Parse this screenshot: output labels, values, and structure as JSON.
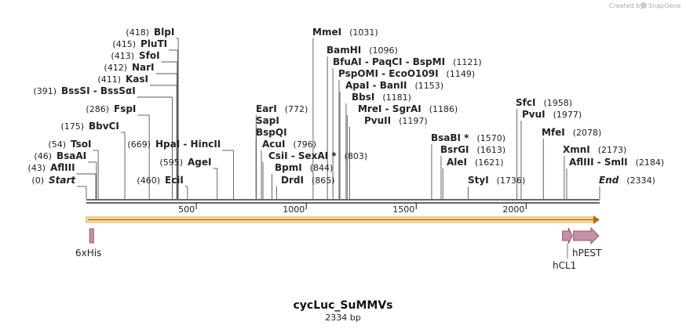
{
  "credit": {
    "text": "Created by",
    "brand": "SnapGene"
  },
  "title": "cycLuc_SuMMVs",
  "subtitle": "2334 bp",
  "length": 2334,
  "colors": {
    "backbone": "#333333",
    "orf_fill": "#ffd27a",
    "orf_edge": "#d08a2a",
    "feature_fill": "#c98fa8",
    "feature_edge": "#8a5a70",
    "leader": "#555555"
  },
  "ticks": [
    {
      "pos": 500,
      "label": "500"
    },
    {
      "pos": 1000,
      "label": "1000"
    },
    {
      "pos": 1500,
      "label": "1500"
    },
    {
      "pos": 2000,
      "label": "2000"
    }
  ],
  "sites": [
    {
      "name": "Start",
      "pos": 0,
      "pos_label": "(0)",
      "italic": true
    },
    {
      "name": "AflIII",
      "pos": 43,
      "pos_label": "(43)"
    },
    {
      "name": "BsaAI",
      "pos": 46,
      "pos_label": "(46)"
    },
    {
      "name": "TsoI",
      "pos": 54,
      "pos_label": "(54)"
    },
    {
      "name": "BbvCI",
      "pos": 175,
      "pos_label": "(175)"
    },
    {
      "name": "FspI",
      "pos": 286,
      "pos_label": "(286)"
    },
    {
      "name": "BssSI  -  BssSαI",
      "pos": 391,
      "pos_label": "(391)"
    },
    {
      "name": "KasI",
      "pos": 411,
      "pos_label": "(411)"
    },
    {
      "name": "NarI",
      "pos": 412,
      "pos_label": "(412)"
    },
    {
      "name": "SfoI",
      "pos": 413,
      "pos_label": "(413)"
    },
    {
      "name": "PluTI",
      "pos": 415,
      "pos_label": "(415)"
    },
    {
      "name": "BlpI",
      "pos": 418,
      "pos_label": "(418)"
    },
    {
      "name": "EciI",
      "pos": 460,
      "pos_label": "(460)"
    },
    {
      "name": "AgeI",
      "pos": 595,
      "pos_label": "(595)"
    },
    {
      "name": "HpaI  -  HincII",
      "pos": 669,
      "pos_label": "(669)"
    },
    {
      "name": "EarI",
      "pos": 772,
      "pos_label": "(772)"
    },
    {
      "name": "SapI",
      "pos": 772,
      "pos_label": ""
    },
    {
      "name": "BspQI",
      "pos": 772,
      "pos_label": ""
    },
    {
      "name": "AcuI",
      "pos": 796,
      "pos_label": "(796)"
    },
    {
      "name": "CsiI  -  SexAI *",
      "pos": 803,
      "pos_label": "(803)"
    },
    {
      "name": "BpmI",
      "pos": 844,
      "pos_label": "(844)"
    },
    {
      "name": "DrdI",
      "pos": 865,
      "pos_label": "(865)"
    },
    {
      "name": "MmeI",
      "pos": 1031,
      "pos_label": "(1031)"
    },
    {
      "name": "BamHI",
      "pos": 1096,
      "pos_label": "(1096)"
    },
    {
      "name": "BfuAI  -  PaqCI  -  BspMI",
      "pos": 1121,
      "pos_label": "(1121)"
    },
    {
      "name": "PspOMI  -  EcoO109I",
      "pos": 1149,
      "pos_label": "(1149)"
    },
    {
      "name": "ApaI  -  BanII",
      "pos": 1153,
      "pos_label": "(1153)"
    },
    {
      "name": "BbsI",
      "pos": 1181,
      "pos_label": "(1181)"
    },
    {
      "name": "MreI  -  SgrAI",
      "pos": 1186,
      "pos_label": "(1186)"
    },
    {
      "name": "PvuII",
      "pos": 1197,
      "pos_label": "(1197)"
    },
    {
      "name": "BsaBI *",
      "pos": 1570,
      "pos_label": "(1570)"
    },
    {
      "name": "BsrGI",
      "pos": 1613,
      "pos_label": "(1613)"
    },
    {
      "name": "AleI",
      "pos": 1621,
      "pos_label": "(1621)"
    },
    {
      "name": "StyI",
      "pos": 1736,
      "pos_label": "(1736)"
    },
    {
      "name": "SfcI",
      "pos": 1958,
      "pos_label": "(1958)"
    },
    {
      "name": "PvuI",
      "pos": 1977,
      "pos_label": "(1977)"
    },
    {
      "name": "MfeI",
      "pos": 2078,
      "pos_label": "(2078)"
    },
    {
      "name": "XmnI",
      "pos": 2173,
      "pos_label": "(2173)"
    },
    {
      "name": "AflIII  -  SmlI",
      "pos": 2184,
      "pos_label": "(2184)"
    },
    {
      "name": "End",
      "pos": 2334,
      "pos_label": "(2334)",
      "italic": true
    }
  ],
  "features": [
    {
      "name": "6xHis",
      "start": 15,
      "end": 33,
      "type": "box"
    },
    {
      "name": "hCL1",
      "start": 2165,
      "end": 2210,
      "type": "arrow"
    },
    {
      "name": "hPEST",
      "start": 2215,
      "end": 2330,
      "type": "arrow"
    }
  ],
  "orf": {
    "start": 1,
    "end": 2334,
    "direction": "forward"
  }
}
